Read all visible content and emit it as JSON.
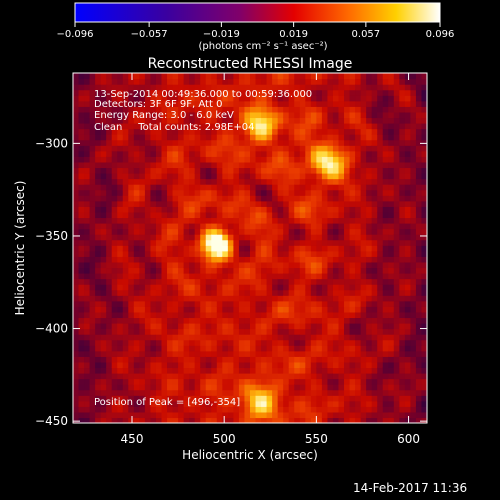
{
  "chart_data": {
    "type": "heatmap",
    "title": "Reconstructed RHESSI Image",
    "xlabel": "Heliocentric X (arcsec)",
    "ylabel": "Heliocentric Y (arcsec)",
    "xlim": [
      418,
      610
    ],
    "ylim": [
      -451,
      -262
    ],
    "x_ticks": [
      450,
      500,
      550,
      600
    ],
    "y_ticks": [
      -300,
      -350,
      -400,
      -450
    ],
    "x_tick_labels": [
      "450",
      "500",
      "550",
      "600"
    ],
    "y_tick_labels": [
      "−300",
      "−350",
      "−400",
      "−450"
    ],
    "colorbar": {
      "range": [
        -0.096,
        0.096
      ],
      "ticks": [
        -0.096,
        -0.057,
        -0.019,
        0.019,
        0.057,
        0.096
      ],
      "tick_labels": [
        "−0.096",
        "−0.057",
        "−0.019",
        "0.019",
        "0.057",
        "0.096"
      ],
      "units_label": "(photons cm⁻² s⁻¹ asec⁻²)"
    },
    "peak": {
      "x": 496,
      "y": -354
    },
    "sources": [
      {
        "x": 496,
        "y": -354,
        "sigma": 6,
        "amp": 1.0
      },
      {
        "x": 520,
        "y": -290,
        "sigma": 7,
        "amp": 0.75
      },
      {
        "x": 556,
        "y": -310,
        "sigma": 8,
        "amp": 0.7
      },
      {
        "x": 520,
        "y": -440,
        "sigma": 8,
        "amp": 0.6
      }
    ]
  },
  "annotations": {
    "time_range": "13-Sep-2014 00:49:36.000 to 00:59:36.000",
    "detectors": "Detectors: 3F 6F 9F, Att 0",
    "energy": "Energy Range: 3.0 - 6.0 keV",
    "clean_line": "Clean     Total counts: 2.98E+04",
    "peak_text": "Position of Peak = [496,-354]"
  },
  "footer": {
    "timestamp": "14-Feb-2017 11:36"
  },
  "colors": {
    "low": "#0000ff",
    "mid": "#ff0000",
    "high": "#ffffff"
  }
}
